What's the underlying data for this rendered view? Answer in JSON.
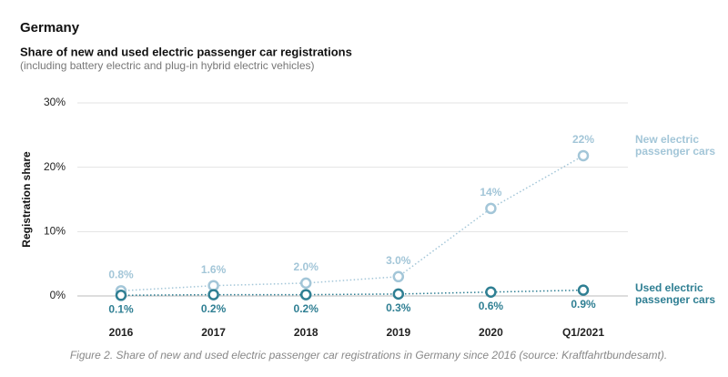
{
  "header": {
    "title": "Germany",
    "subtitle": "Share of new and used electric passenger car registrations",
    "note": "(including battery electric and plug-in hybrid electric vehicles)"
  },
  "chart_data": {
    "type": "line",
    "ylabel": "Registration share",
    "categories": [
      "2016",
      "2017",
      "2018",
      "2019",
      "2020",
      "Q1/2021"
    ],
    "series": [
      {
        "name": "New electric passenger cars",
        "color": "#a3c6d8",
        "values": [
          0.8,
          1.6,
          2.0,
          3.0,
          13.6,
          21.8
        ],
        "value_labels": [
          "0.8%",
          "1.6%",
          "2.0%",
          "3.0%",
          "14%",
          "22%"
        ]
      },
      {
        "name": "Used electric passenger cars",
        "color": "#2f7f93",
        "values": [
          0.1,
          0.2,
          0.2,
          0.3,
          0.6,
          0.9
        ],
        "value_labels": [
          "0.1%",
          "0.2%",
          "0.2%",
          "0.3%",
          "0.6%",
          "0.9%"
        ]
      }
    ],
    "ylim": [
      0,
      30
    ],
    "yticks": [
      {
        "value": 0,
        "label": "0%"
      },
      {
        "value": 10,
        "label": "10%"
      },
      {
        "value": 20,
        "label": "20%"
      },
      {
        "value": 30,
        "label": "30%"
      }
    ],
    "grid": true
  },
  "caption": "Figure 2. Share of new and used electric passenger car registrations in Germany since 2016 (source: Kraftfahrtbundesamt)."
}
